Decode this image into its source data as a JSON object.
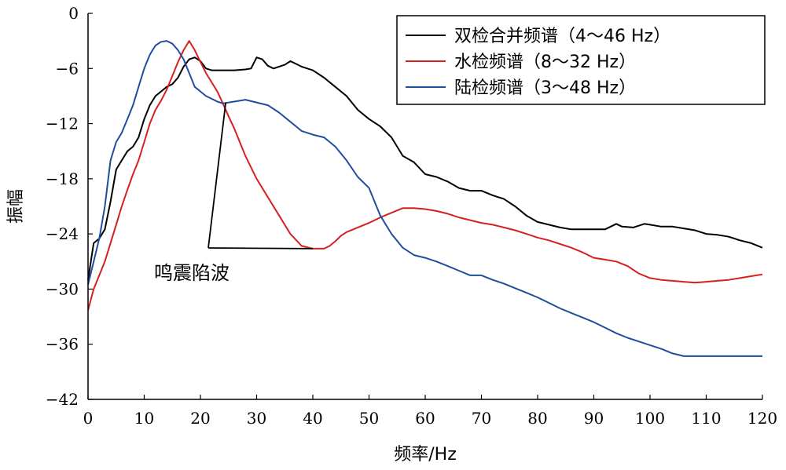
{
  "chart_data": {
    "type": "line",
    "xlabel": "频率/Hz",
    "ylabel": "振幅",
    "xlim": [
      0,
      120
    ],
    "ylim": [
      -42,
      0
    ],
    "xticks": [
      0,
      10,
      20,
      30,
      40,
      50,
      60,
      70,
      80,
      90,
      100,
      110,
      120
    ],
    "yticks": [
      0,
      -6,
      -12,
      -18,
      -24,
      -30,
      -36,
      -42
    ],
    "grid": false,
    "legend_position": "top-right",
    "annotation": {
      "text": "鸣震陷波"
    },
    "series": [
      {
        "name": "双检合并频谱（4～46 Hz）",
        "color": "#000000",
        "points": [
          [
            0,
            -29
          ],
          [
            1,
            -25
          ],
          [
            2,
            -24.5
          ],
          [
            3,
            -23.5
          ],
          [
            4,
            -20.5
          ],
          [
            5,
            -17
          ],
          [
            6,
            -16
          ],
          [
            7,
            -15
          ],
          [
            8,
            -14.5
          ],
          [
            9,
            -13.5
          ],
          [
            10,
            -11.5
          ],
          [
            11,
            -10
          ],
          [
            12,
            -9
          ],
          [
            13,
            -8.5
          ],
          [
            14,
            -8
          ],
          [
            15,
            -7.7
          ],
          [
            16,
            -7
          ],
          [
            17,
            -5.8
          ],
          [
            18,
            -5
          ],
          [
            19,
            -4.8
          ],
          [
            20,
            -5.2
          ],
          [
            21,
            -6
          ],
          [
            22,
            -6.2
          ],
          [
            24,
            -6.2
          ],
          [
            26,
            -6.2
          ],
          [
            28,
            -6.1
          ],
          [
            29,
            -6
          ],
          [
            30,
            -4.8
          ],
          [
            31,
            -5
          ],
          [
            32,
            -5.7
          ],
          [
            33,
            -6
          ],
          [
            34,
            -5.8
          ],
          [
            35,
            -5.6
          ],
          [
            36,
            -5.2
          ],
          [
            37,
            -5.5
          ],
          [
            38,
            -5.8
          ],
          [
            40,
            -6.2
          ],
          [
            42,
            -7
          ],
          [
            44,
            -8
          ],
          [
            46,
            -9
          ],
          [
            48,
            -10.5
          ],
          [
            50,
            -11.5
          ],
          [
            52,
            -12.3
          ],
          [
            54,
            -13.5
          ],
          [
            56,
            -15.5
          ],
          [
            58,
            -16.2
          ],
          [
            60,
            -17.5
          ],
          [
            62,
            -17.8
          ],
          [
            64,
            -18.3
          ],
          [
            66,
            -19
          ],
          [
            68,
            -19.3
          ],
          [
            70,
            -19.3
          ],
          [
            72,
            -19.8
          ],
          [
            74,
            -20.2
          ],
          [
            76,
            -21
          ],
          [
            78,
            -22
          ],
          [
            80,
            -22.7
          ],
          [
            82,
            -23
          ],
          [
            84,
            -23.3
          ],
          [
            86,
            -23.5
          ],
          [
            88,
            -23.5
          ],
          [
            90,
            -23.5
          ],
          [
            92,
            -23.5
          ],
          [
            94,
            -22.9
          ],
          [
            95,
            -23.2
          ],
          [
            97,
            -23.3
          ],
          [
            99,
            -22.9
          ],
          [
            100,
            -23
          ],
          [
            102,
            -23.2
          ],
          [
            104,
            -23.2
          ],
          [
            106,
            -23.4
          ],
          [
            108,
            -23.6
          ],
          [
            110,
            -24
          ],
          [
            112,
            -24.1
          ],
          [
            114,
            -24.3
          ],
          [
            116,
            -24.7
          ],
          [
            118,
            -25
          ],
          [
            120,
            -25.5
          ]
        ]
      },
      {
        "name": "水检频谱（8～32 Hz）",
        "color": "#d62020",
        "points": [
          [
            0,
            -32.3
          ],
          [
            1,
            -30
          ],
          [
            2,
            -28.5
          ],
          [
            3,
            -27
          ],
          [
            4,
            -25
          ],
          [
            5,
            -23
          ],
          [
            6,
            -21
          ],
          [
            7,
            -19.2
          ],
          [
            8,
            -17.5
          ],
          [
            9,
            -16
          ],
          [
            10,
            -14
          ],
          [
            11,
            -12
          ],
          [
            12,
            -10.5
          ],
          [
            13,
            -9.5
          ],
          [
            14,
            -8.3
          ],
          [
            15,
            -6.8
          ],
          [
            16,
            -5.3
          ],
          [
            17,
            -4
          ],
          [
            18,
            -3
          ],
          [
            19,
            -4
          ],
          [
            20,
            -5.3
          ],
          [
            21,
            -6.5
          ],
          [
            22,
            -7.5
          ],
          [
            23,
            -8.5
          ],
          [
            24,
            -9.8
          ],
          [
            25,
            -11.2
          ],
          [
            26,
            -12.5
          ],
          [
            28,
            -15.5
          ],
          [
            30,
            -18
          ],
          [
            32,
            -20
          ],
          [
            34,
            -22
          ],
          [
            36,
            -24
          ],
          [
            38,
            -25.3
          ],
          [
            40,
            -25.6
          ],
          [
            42,
            -25.6
          ],
          [
            43,
            -25.3
          ],
          [
            44,
            -24.8
          ],
          [
            45,
            -24.2
          ],
          [
            46,
            -23.8
          ],
          [
            48,
            -23.3
          ],
          [
            50,
            -22.8
          ],
          [
            52,
            -22.2
          ],
          [
            54,
            -21.7
          ],
          [
            56,
            -21.2
          ],
          [
            58,
            -21.2
          ],
          [
            60,
            -21.3
          ],
          [
            62,
            -21.5
          ],
          [
            64,
            -21.8
          ],
          [
            66,
            -22.2
          ],
          [
            68,
            -22.5
          ],
          [
            70,
            -22.8
          ],
          [
            72,
            -23
          ],
          [
            74,
            -23.3
          ],
          [
            76,
            -23.6
          ],
          [
            78,
            -24
          ],
          [
            80,
            -24.4
          ],
          [
            82,
            -24.7
          ],
          [
            84,
            -25.1
          ],
          [
            86,
            -25.5
          ],
          [
            88,
            -26
          ],
          [
            90,
            -26.6
          ],
          [
            92,
            -26.8
          ],
          [
            94,
            -27
          ],
          [
            96,
            -27.5
          ],
          [
            98,
            -28.3
          ],
          [
            100,
            -28.8
          ],
          [
            102,
            -29
          ],
          [
            104,
            -29.1
          ],
          [
            106,
            -29.2
          ],
          [
            108,
            -29.3
          ],
          [
            110,
            -29.2
          ],
          [
            112,
            -29.1
          ],
          [
            114,
            -29
          ],
          [
            116,
            -28.8
          ],
          [
            118,
            -28.6
          ],
          [
            120,
            -28.4
          ]
        ]
      },
      {
        "name": "陆检频谱（3～48 Hz）",
        "color": "#1f4e9e",
        "points": [
          [
            0,
            -29.5
          ],
          [
            1,
            -27
          ],
          [
            2,
            -24.5
          ],
          [
            3,
            -21
          ],
          [
            4,
            -16
          ],
          [
            5,
            -14
          ],
          [
            6,
            -13
          ],
          [
            7,
            -11.5
          ],
          [
            8,
            -10
          ],
          [
            9,
            -8
          ],
          [
            10,
            -6
          ],
          [
            11,
            -4.5
          ],
          [
            12,
            -3.5
          ],
          [
            13,
            -3.1
          ],
          [
            14,
            -3
          ],
          [
            15,
            -3.3
          ],
          [
            16,
            -4
          ],
          [
            17,
            -5
          ],
          [
            18,
            -6.5
          ],
          [
            19,
            -8
          ],
          [
            20,
            -8.5
          ],
          [
            21,
            -9
          ],
          [
            22,
            -9.3
          ],
          [
            23,
            -9.6
          ],
          [
            24,
            -9.8
          ],
          [
            26,
            -9.6
          ],
          [
            28,
            -9.4
          ],
          [
            30,
            -9.7
          ],
          [
            32,
            -10
          ],
          [
            34,
            -10.8
          ],
          [
            36,
            -11.8
          ],
          [
            38,
            -12.8
          ],
          [
            40,
            -13.2
          ],
          [
            42,
            -13.5
          ],
          [
            44,
            -14.5
          ],
          [
            46,
            -16
          ],
          [
            48,
            -17.8
          ],
          [
            50,
            -19
          ],
          [
            51,
            -20.5
          ],
          [
            52,
            -22
          ],
          [
            53,
            -23
          ],
          [
            54,
            -24
          ],
          [
            56,
            -25.5
          ],
          [
            58,
            -26.3
          ],
          [
            60,
            -26.6
          ],
          [
            62,
            -27
          ],
          [
            64,
            -27.5
          ],
          [
            66,
            -28
          ],
          [
            68,
            -28.5
          ],
          [
            70,
            -28.5
          ],
          [
            72,
            -29
          ],
          [
            74,
            -29.4
          ],
          [
            76,
            -29.9
          ],
          [
            78,
            -30.4
          ],
          [
            80,
            -30.9
          ],
          [
            82,
            -31.5
          ],
          [
            84,
            -32.1
          ],
          [
            86,
            -32.6
          ],
          [
            88,
            -33.1
          ],
          [
            90,
            -33.6
          ],
          [
            92,
            -34.2
          ],
          [
            94,
            -34.8
          ],
          [
            96,
            -35.3
          ],
          [
            98,
            -35.7
          ],
          [
            100,
            -36.1
          ],
          [
            102,
            -36.5
          ],
          [
            104,
            -37
          ],
          [
            106,
            -37.3
          ],
          [
            108,
            -37.3
          ],
          [
            110,
            -37.3
          ],
          [
            112,
            -37.3
          ],
          [
            114,
            -37.3
          ],
          [
            116,
            -37.3
          ],
          [
            118,
            -37.3
          ],
          [
            120,
            -37.3
          ]
        ]
      }
    ]
  }
}
